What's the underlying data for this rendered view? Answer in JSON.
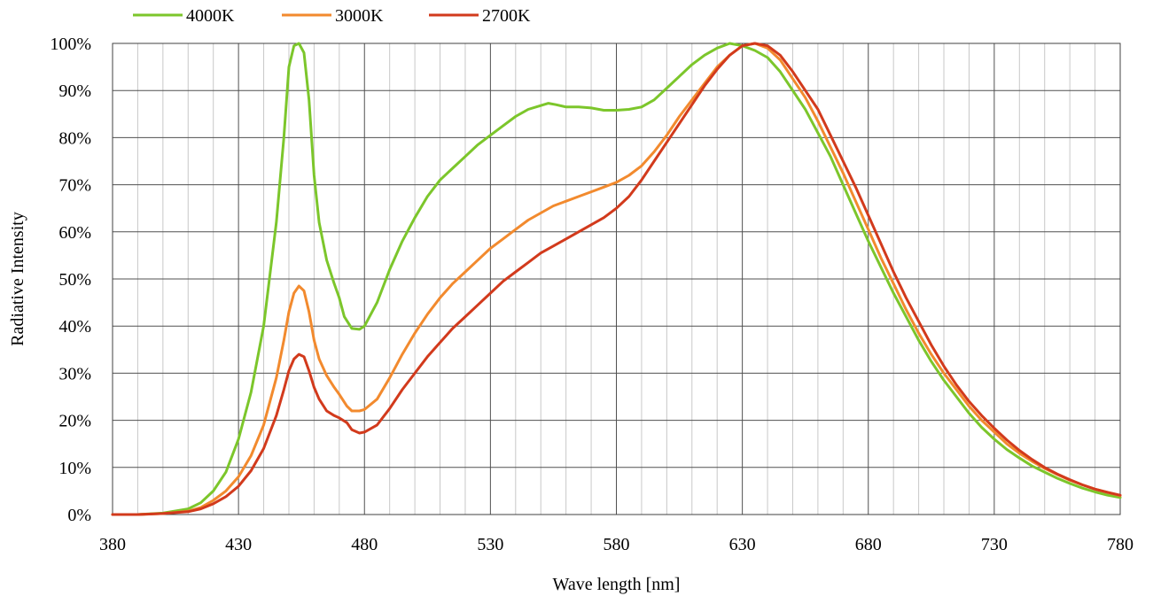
{
  "chart_data": {
    "type": "line",
    "title": "",
    "xlabel": "Wave length [nm]",
    "ylabel": "Radiative Intensity",
    "xlim": [
      380,
      780
    ],
    "ylim": [
      0,
      100
    ],
    "x_major_ticks": [
      380,
      430,
      480,
      530,
      580,
      630,
      680,
      730,
      780
    ],
    "x_tick_labels": [
      "380",
      "430",
      "480",
      "530",
      "580",
      "630",
      "680",
      "730",
      "780"
    ],
    "x_minor_step": 10,
    "y_ticks": [
      0,
      10,
      20,
      30,
      40,
      50,
      60,
      70,
      80,
      90,
      100
    ],
    "y_tick_labels": [
      "0%",
      "10%",
      "20%",
      "30%",
      "40%",
      "50%",
      "60%",
      "70%",
      "80%",
      "90%",
      "100%"
    ],
    "grid": true,
    "legend_position": "top-left",
    "series": [
      {
        "name": "4000K",
        "color": "#7cc62b",
        "points": [
          [
            380,
            0
          ],
          [
            390,
            0
          ],
          [
            400,
            0.3
          ],
          [
            410,
            1.2
          ],
          [
            415,
            2.5
          ],
          [
            420,
            5
          ],
          [
            425,
            9
          ],
          [
            430,
            16
          ],
          [
            435,
            26
          ],
          [
            440,
            40
          ],
          [
            445,
            62
          ],
          [
            448,
            80
          ],
          [
            450,
            95
          ],
          [
            452,
            99.5
          ],
          [
            454,
            100
          ],
          [
            456,
            98
          ],
          [
            458,
            88
          ],
          [
            460,
            72
          ],
          [
            462,
            62
          ],
          [
            465,
            54
          ],
          [
            468,
            49
          ],
          [
            470,
            46
          ],
          [
            472,
            42
          ],
          [
            475,
            39.5
          ],
          [
            478,
            39.3
          ],
          [
            480,
            40
          ],
          [
            485,
            45
          ],
          [
            490,
            52
          ],
          [
            495,
            58
          ],
          [
            500,
            63
          ],
          [
            505,
            67.5
          ],
          [
            510,
            71
          ],
          [
            515,
            73.5
          ],
          [
            520,
            76
          ],
          [
            525,
            78.5
          ],
          [
            530,
            80.5
          ],
          [
            535,
            82.5
          ],
          [
            540,
            84.5
          ],
          [
            545,
            86
          ],
          [
            550,
            86.8
          ],
          [
            553,
            87.3
          ],
          [
            556,
            87
          ],
          [
            560,
            86.5
          ],
          [
            565,
            86.5
          ],
          [
            570,
            86.3
          ],
          [
            575,
            85.8
          ],
          [
            580,
            85.8
          ],
          [
            585,
            86
          ],
          [
            590,
            86.5
          ],
          [
            595,
            88
          ],
          [
            600,
            90.5
          ],
          [
            605,
            93
          ],
          [
            610,
            95.5
          ],
          [
            615,
            97.5
          ],
          [
            620,
            99
          ],
          [
            625,
            100
          ],
          [
            630,
            99.5
          ],
          [
            635,
            98.5
          ],
          [
            640,
            97
          ],
          [
            645,
            94
          ],
          [
            650,
            90
          ],
          [
            655,
            86
          ],
          [
            660,
            81
          ],
          [
            665,
            76
          ],
          [
            670,
            70
          ],
          [
            675,
            64
          ],
          [
            680,
            58
          ],
          [
            685,
            52.5
          ],
          [
            690,
            47
          ],
          [
            695,
            42
          ],
          [
            700,
            37
          ],
          [
            705,
            32.5
          ],
          [
            710,
            28.5
          ],
          [
            715,
            25
          ],
          [
            720,
            21.5
          ],
          [
            725,
            18.5
          ],
          [
            730,
            16
          ],
          [
            735,
            13.8
          ],
          [
            740,
            12
          ],
          [
            745,
            10.3
          ],
          [
            750,
            9
          ],
          [
            755,
            7.7
          ],
          [
            760,
            6.6
          ],
          [
            765,
            5.6
          ],
          [
            770,
            4.8
          ],
          [
            775,
            4.1
          ],
          [
            780,
            3.6
          ]
        ]
      },
      {
        "name": "3000K",
        "color": "#f28a2e",
        "points": [
          [
            380,
            0
          ],
          [
            390,
            0
          ],
          [
            400,
            0.2
          ],
          [
            410,
            0.7
          ],
          [
            415,
            1.5
          ],
          [
            420,
            3
          ],
          [
            425,
            5
          ],
          [
            430,
            8
          ],
          [
            435,
            12.5
          ],
          [
            440,
            19
          ],
          [
            445,
            29
          ],
          [
            448,
            37
          ],
          [
            450,
            43
          ],
          [
            452,
            47
          ],
          [
            454,
            48.5
          ],
          [
            456,
            47.5
          ],
          [
            458,
            43
          ],
          [
            460,
            37
          ],
          [
            462,
            33
          ],
          [
            465,
            29.5
          ],
          [
            468,
            27
          ],
          [
            470,
            25.5
          ],
          [
            473,
            23
          ],
          [
            475,
            22
          ],
          [
            478,
            22
          ],
          [
            480,
            22.3
          ],
          [
            485,
            24.5
          ],
          [
            490,
            29
          ],
          [
            495,
            34
          ],
          [
            500,
            38.5
          ],
          [
            505,
            42.5
          ],
          [
            510,
            46
          ],
          [
            515,
            49
          ],
          [
            520,
            51.5
          ],
          [
            525,
            54
          ],
          [
            530,
            56.5
          ],
          [
            535,
            58.5
          ],
          [
            540,
            60.5
          ],
          [
            545,
            62.5
          ],
          [
            550,
            64
          ],
          [
            555,
            65.5
          ],
          [
            560,
            66.5
          ],
          [
            565,
            67.5
          ],
          [
            570,
            68.5
          ],
          [
            575,
            69.5
          ],
          [
            580,
            70.5
          ],
          [
            585,
            72
          ],
          [
            590,
            74
          ],
          [
            595,
            77
          ],
          [
            600,
            80.5
          ],
          [
            605,
            84.5
          ],
          [
            610,
            88
          ],
          [
            615,
            91.5
          ],
          [
            620,
            95
          ],
          [
            625,
            97.5
          ],
          [
            630,
            99.5
          ],
          [
            635,
            100
          ],
          [
            640,
            99
          ],
          [
            645,
            96.5
          ],
          [
            650,
            92.5
          ],
          [
            655,
            88.5
          ],
          [
            660,
            83.5
          ],
          [
            665,
            78
          ],
          [
            670,
            72.5
          ],
          [
            675,
            66.5
          ],
          [
            680,
            60.5
          ],
          [
            685,
            54.5
          ],
          [
            690,
            49
          ],
          [
            695,
            43.5
          ],
          [
            700,
            38.5
          ],
          [
            705,
            34
          ],
          [
            710,
            30
          ],
          [
            715,
            26.5
          ],
          [
            720,
            23
          ],
          [
            725,
            20
          ],
          [
            730,
            17.5
          ],
          [
            735,
            15
          ],
          [
            740,
            13
          ],
          [
            745,
            11.3
          ],
          [
            750,
            9.8
          ],
          [
            755,
            8.5
          ],
          [
            760,
            7.3
          ],
          [
            765,
            6.3
          ],
          [
            770,
            5.4
          ],
          [
            775,
            4.7
          ],
          [
            780,
            4
          ]
        ]
      },
      {
        "name": "2700K",
        "color": "#d23a1c",
        "points": [
          [
            380,
            0
          ],
          [
            390,
            0
          ],
          [
            400,
            0.2
          ],
          [
            410,
            0.6
          ],
          [
            415,
            1.2
          ],
          [
            420,
            2.3
          ],
          [
            425,
            3.8
          ],
          [
            430,
            6
          ],
          [
            435,
            9.3
          ],
          [
            440,
            14
          ],
          [
            445,
            21
          ],
          [
            448,
            26.5
          ],
          [
            450,
            30.5
          ],
          [
            452,
            33
          ],
          [
            454,
            34
          ],
          [
            456,
            33.5
          ],
          [
            458,
            30.5
          ],
          [
            460,
            27
          ],
          [
            462,
            24.5
          ],
          [
            465,
            22
          ],
          [
            468,
            21
          ],
          [
            470,
            20.5
          ],
          [
            473,
            19.5
          ],
          [
            475,
            18
          ],
          [
            478,
            17.3
          ],
          [
            480,
            17.5
          ],
          [
            485,
            19
          ],
          [
            490,
            22.5
          ],
          [
            495,
            26.5
          ],
          [
            500,
            30
          ],
          [
            505,
            33.5
          ],
          [
            510,
            36.5
          ],
          [
            515,
            39.5
          ],
          [
            520,
            42
          ],
          [
            525,
            44.5
          ],
          [
            530,
            47
          ],
          [
            535,
            49.5
          ],
          [
            540,
            51.5
          ],
          [
            545,
            53.5
          ],
          [
            550,
            55.5
          ],
          [
            555,
            57
          ],
          [
            560,
            58.5
          ],
          [
            565,
            60
          ],
          [
            570,
            61.5
          ],
          [
            575,
            63
          ],
          [
            580,
            65
          ],
          [
            585,
            67.5
          ],
          [
            590,
            71
          ],
          [
            595,
            75
          ],
          [
            600,
            79
          ],
          [
            605,
            83
          ],
          [
            610,
            87
          ],
          [
            615,
            91
          ],
          [
            620,
            94.5
          ],
          [
            625,
            97.5
          ],
          [
            630,
            99.5
          ],
          [
            635,
            100
          ],
          [
            640,
            99.5
          ],
          [
            645,
            97.5
          ],
          [
            650,
            94
          ],
          [
            655,
            90
          ],
          [
            660,
            86
          ],
          [
            665,
            80.5
          ],
          [
            670,
            75
          ],
          [
            675,
            69.5
          ],
          [
            680,
            63.5
          ],
          [
            685,
            57.5
          ],
          [
            690,
            51.5
          ],
          [
            695,
            46
          ],
          [
            700,
            41
          ],
          [
            705,
            36
          ],
          [
            710,
            31.5
          ],
          [
            715,
            27.5
          ],
          [
            720,
            24
          ],
          [
            725,
            21
          ],
          [
            730,
            18.3
          ],
          [
            735,
            15.8
          ],
          [
            740,
            13.6
          ],
          [
            745,
            11.7
          ],
          [
            750,
            10
          ],
          [
            755,
            8.6
          ],
          [
            760,
            7.4
          ],
          [
            765,
            6.3
          ],
          [
            770,
            5.4
          ],
          [
            775,
            4.7
          ],
          [
            780,
            4.1
          ]
        ]
      }
    ]
  }
}
